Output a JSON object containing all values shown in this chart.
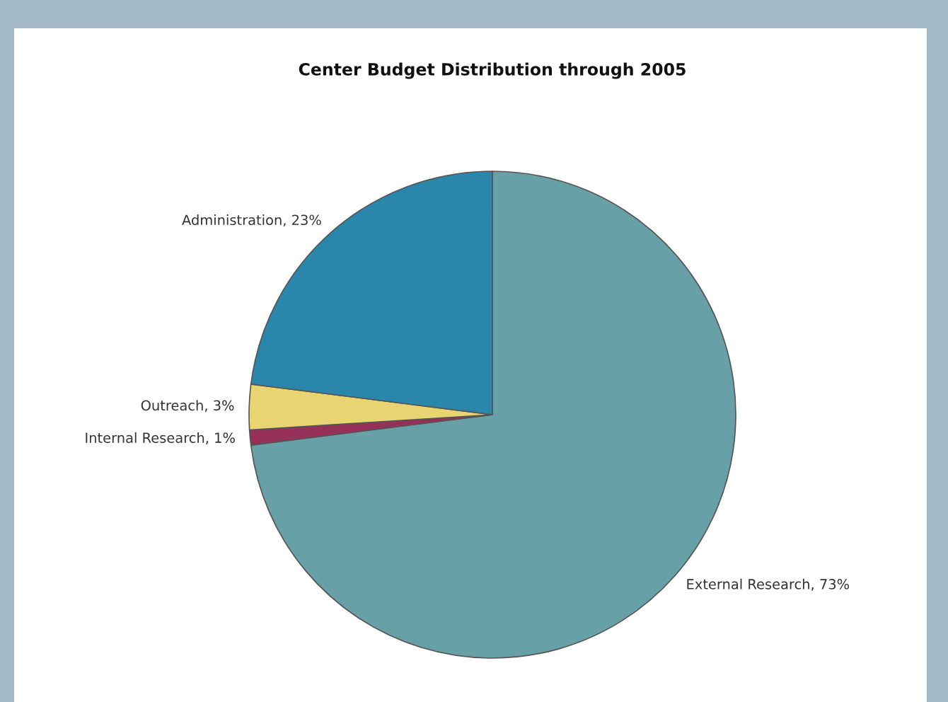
{
  "chart_data": {
    "type": "pie",
    "title": "Center Budget Distribution through 2005",
    "categories": [
      "External Research, 73%",
      "Internal Research, 1%",
      "Outreach, 3%",
      "Administration, 23%"
    ],
    "values": [
      73,
      1,
      3,
      23
    ],
    "colors": [
      "#68a0a8",
      "#963058",
      "#e8d470",
      "#2a86aa"
    ]
  }
}
